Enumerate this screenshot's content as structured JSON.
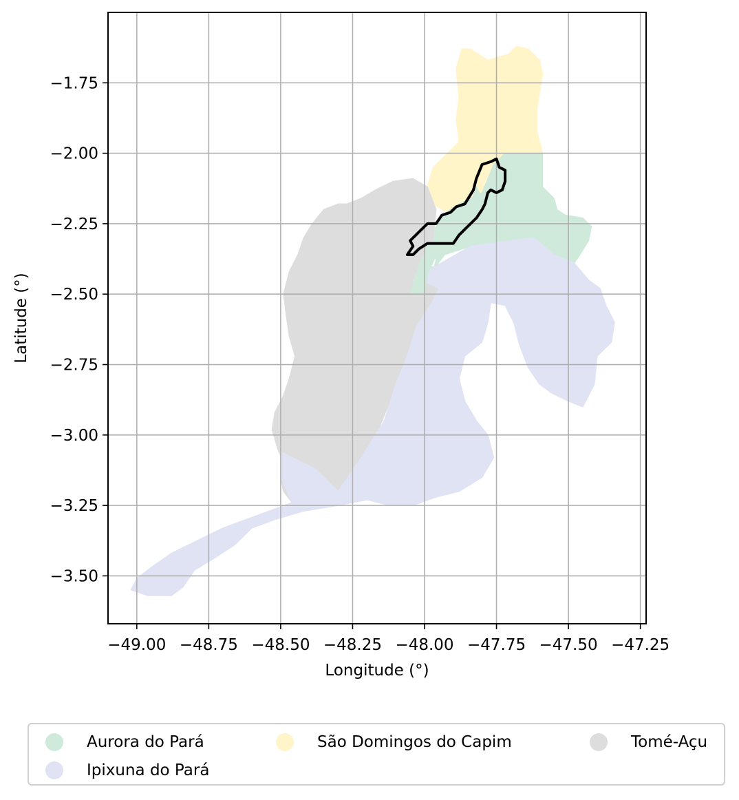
{
  "chart_data": {
    "type": "map",
    "xlabel": "Longitude (°)",
    "ylabel": "Latitude (°)",
    "xlim": [
      -49.1,
      -47.23
    ],
    "ylim": [
      -3.67,
      -1.5
    ],
    "x_ticks": [
      -49.0,
      -48.75,
      -48.5,
      -48.25,
      -48.0,
      -47.75,
      -47.5,
      -47.25
    ],
    "x_tick_labels": [
      "−49.00",
      "−48.75",
      "−48.50",
      "−48.25",
      "−48.00",
      "−47.75",
      "−47.50",
      "−47.25"
    ],
    "y_ticks": [
      -1.75,
      -2.0,
      -2.25,
      -2.5,
      -2.75,
      -3.0,
      -3.25,
      -3.5
    ],
    "y_tick_labels": [
      "−1.75",
      "−2.00",
      "−2.25",
      "−2.50",
      "−2.75",
      "−3.00",
      "−3.25",
      "−3.50"
    ],
    "grid": true,
    "legend_position": "bottom",
    "regions": [
      {
        "name": "São Domingos do Capim",
        "color": "#fff5c8",
        "outline": [
          [
            -47.87,
            -1.63
          ],
          [
            -47.84,
            -1.63
          ],
          [
            -47.81,
            -1.65
          ],
          [
            -47.78,
            -1.67
          ],
          [
            -47.75,
            -1.66
          ],
          [
            -47.71,
            -1.65
          ],
          [
            -47.68,
            -1.62
          ],
          [
            -47.64,
            -1.63
          ],
          [
            -47.6,
            -1.67
          ],
          [
            -47.59,
            -1.72
          ],
          [
            -47.6,
            -1.78
          ],
          [
            -47.61,
            -1.85
          ],
          [
            -47.61,
            -1.92
          ],
          [
            -47.59,
            -2.0
          ],
          [
            -47.72,
            -2.0
          ],
          [
            -47.76,
            -2.04
          ],
          [
            -47.79,
            -2.1
          ],
          [
            -47.8,
            -2.14
          ],
          [
            -47.86,
            -2.17
          ],
          [
            -47.92,
            -2.21
          ],
          [
            -47.97,
            -2.18
          ],
          [
            -47.99,
            -2.12
          ],
          [
            -47.97,
            -2.05
          ],
          [
            -47.92,
            -2.0
          ],
          [
            -47.88,
            -1.96
          ],
          [
            -47.89,
            -1.88
          ],
          [
            -47.88,
            -1.8
          ],
          [
            -47.89,
            -1.7
          ]
        ]
      },
      {
        "name": "Aurora do Pará",
        "color": "#cfeadb",
        "outline": [
          [
            -47.72,
            -2.0
          ],
          [
            -47.59,
            -2.0
          ],
          [
            -47.59,
            -2.06
          ],
          [
            -47.59,
            -2.12
          ],
          [
            -47.55,
            -2.16
          ],
          [
            -47.54,
            -2.2
          ],
          [
            -47.51,
            -2.22
          ],
          [
            -47.45,
            -2.23
          ],
          [
            -47.42,
            -2.26
          ],
          [
            -47.43,
            -2.31
          ],
          [
            -47.46,
            -2.36
          ],
          [
            -47.48,
            -2.39
          ],
          [
            -47.55,
            -2.36
          ],
          [
            -47.6,
            -2.32
          ],
          [
            -47.65,
            -2.3
          ],
          [
            -47.7,
            -2.31
          ],
          [
            -47.78,
            -2.32
          ],
          [
            -47.84,
            -2.33
          ],
          [
            -47.93,
            -2.36
          ],
          [
            -47.96,
            -2.4
          ],
          [
            -48.0,
            -2.41
          ],
          [
            -48.04,
            -2.45
          ],
          [
            -48.05,
            -2.49
          ],
          [
            -48.02,
            -2.5
          ],
          [
            -47.98,
            -2.46
          ],
          [
            -47.96,
            -2.38
          ],
          [
            -47.97,
            -2.28
          ],
          [
            -47.94,
            -2.22
          ],
          [
            -47.88,
            -2.18
          ],
          [
            -47.8,
            -2.14
          ],
          [
            -47.76,
            -2.04
          ]
        ]
      },
      {
        "name": "Tomé-Açu",
        "color": "#dddddd",
        "outline": [
          [
            -47.99,
            -2.12
          ],
          [
            -48.04,
            -2.09
          ],
          [
            -48.11,
            -2.1
          ],
          [
            -48.17,
            -2.13
          ],
          [
            -48.22,
            -2.16
          ],
          [
            -48.27,
            -2.18
          ],
          [
            -48.3,
            -2.18
          ],
          [
            -48.35,
            -2.2
          ],
          [
            -48.39,
            -2.25
          ],
          [
            -48.42,
            -2.3
          ],
          [
            -48.44,
            -2.36
          ],
          [
            -48.47,
            -2.42
          ],
          [
            -48.49,
            -2.5
          ],
          [
            -48.48,
            -2.58
          ],
          [
            -48.47,
            -2.65
          ],
          [
            -48.45,
            -2.72
          ],
          [
            -48.47,
            -2.8
          ],
          [
            -48.49,
            -2.86
          ],
          [
            -48.52,
            -2.92
          ],
          [
            -48.53,
            -2.98
          ],
          [
            -48.51,
            -3.05
          ],
          [
            -48.49,
            -3.1
          ],
          [
            -48.5,
            -3.15
          ],
          [
            -48.49,
            -3.2
          ],
          [
            -48.46,
            -3.24
          ],
          [
            -48.4,
            -3.25
          ],
          [
            -48.34,
            -3.25
          ],
          [
            -48.28,
            -3.2
          ],
          [
            -48.25,
            -3.14
          ],
          [
            -48.22,
            -3.08
          ],
          [
            -48.16,
            -2.98
          ],
          [
            -48.12,
            -2.88
          ],
          [
            -48.08,
            -2.78
          ],
          [
            -48.06,
            -2.72
          ],
          [
            -48.02,
            -2.65
          ],
          [
            -47.96,
            -2.58
          ],
          [
            -47.92,
            -2.52
          ],
          [
            -47.96,
            -2.46
          ],
          [
            -47.98,
            -2.4
          ],
          [
            -47.97,
            -2.3
          ],
          [
            -47.96,
            -2.2
          ]
        ]
      },
      {
        "name": "Ipixuna do Pará",
        "color": "#dfe3f3",
        "outline": [
          [
            -48.04,
            -2.45
          ],
          [
            -47.96,
            -2.4
          ],
          [
            -47.84,
            -2.33
          ],
          [
            -47.7,
            -2.31
          ],
          [
            -47.62,
            -2.3
          ],
          [
            -47.55,
            -2.36
          ],
          [
            -47.48,
            -2.39
          ],
          [
            -47.43,
            -2.45
          ],
          [
            -47.39,
            -2.48
          ],
          [
            -47.37,
            -2.54
          ],
          [
            -47.34,
            -2.6
          ],
          [
            -47.35,
            -2.67
          ],
          [
            -47.4,
            -2.72
          ],
          [
            -47.41,
            -2.82
          ],
          [
            -47.45,
            -2.9
          ],
          [
            -47.5,
            -2.88
          ],
          [
            -47.56,
            -2.85
          ],
          [
            -47.6,
            -2.82
          ],
          [
            -47.64,
            -2.76
          ],
          [
            -47.67,
            -2.68
          ],
          [
            -47.69,
            -2.6
          ],
          [
            -47.72,
            -2.54
          ],
          [
            -47.77,
            -2.53
          ],
          [
            -47.78,
            -2.6
          ],
          [
            -47.8,
            -2.67
          ],
          [
            -47.86,
            -2.72
          ],
          [
            -47.88,
            -2.8
          ],
          [
            -47.86,
            -2.88
          ],
          [
            -47.82,
            -2.95
          ],
          [
            -47.78,
            -3.0
          ],
          [
            -47.76,
            -3.08
          ],
          [
            -47.8,
            -3.15
          ],
          [
            -47.88,
            -3.2
          ],
          [
            -47.96,
            -3.22
          ],
          [
            -48.04,
            -3.25
          ],
          [
            -48.12,
            -3.25
          ],
          [
            -48.2,
            -3.23
          ],
          [
            -48.3,
            -3.25
          ],
          [
            -48.42,
            -3.27
          ],
          [
            -48.52,
            -3.3
          ],
          [
            -48.6,
            -3.33
          ],
          [
            -48.66,
            -3.39
          ],
          [
            -48.72,
            -3.43
          ],
          [
            -48.8,
            -3.48
          ],
          [
            -48.84,
            -3.54
          ],
          [
            -48.88,
            -3.57
          ],
          [
            -48.96,
            -3.57
          ],
          [
            -49.02,
            -3.55
          ],
          [
            -49.0,
            -3.51
          ],
          [
            -48.95,
            -3.47
          ],
          [
            -48.88,
            -3.42
          ],
          [
            -48.82,
            -3.39
          ],
          [
            -48.76,
            -3.36
          ],
          [
            -48.7,
            -3.33
          ],
          [
            -48.62,
            -3.3
          ],
          [
            -48.54,
            -3.27
          ],
          [
            -48.46,
            -3.24
          ],
          [
            -48.5,
            -3.15
          ],
          [
            -48.5,
            -3.06
          ],
          [
            -48.38,
            -3.12
          ],
          [
            -48.3,
            -3.2
          ],
          [
            -48.22,
            -3.08
          ],
          [
            -48.14,
            -2.95
          ],
          [
            -48.1,
            -2.82
          ],
          [
            -48.06,
            -2.72
          ],
          [
            -48.03,
            -2.62
          ],
          [
            -47.98,
            -2.54
          ],
          [
            -47.95,
            -2.48
          ],
          [
            -47.99,
            -2.46
          ]
        ]
      },
      {
        "name": "",
        "color": "#cfeadb",
        "outline": [
          [
            -47.99,
            -2.43
          ],
          [
            -47.95,
            -2.34
          ],
          [
            -47.91,
            -2.28
          ],
          [
            -47.86,
            -2.26
          ],
          [
            -47.82,
            -2.21
          ],
          [
            -47.8,
            -2.16
          ],
          [
            -47.82,
            -2.12
          ],
          [
            -47.84,
            -2.18
          ],
          [
            -47.88,
            -2.24
          ],
          [
            -47.93,
            -2.27
          ],
          [
            -47.99,
            -2.33
          ],
          [
            -48.02,
            -2.4
          ],
          [
            -48.05,
            -2.5
          ],
          [
            -48.0,
            -2.5
          ]
        ]
      }
    ],
    "highlight_outline": [
      [
        -47.75,
        -2.02
      ],
      [
        -47.74,
        -2.05
      ],
      [
        -47.72,
        -2.06
      ],
      [
        -47.72,
        -2.1
      ],
      [
        -47.73,
        -2.13
      ],
      [
        -47.75,
        -2.14
      ],
      [
        -47.77,
        -2.13
      ],
      [
        -47.78,
        -2.14
      ],
      [
        -47.79,
        -2.18
      ],
      [
        -47.8,
        -2.2
      ],
      [
        -47.82,
        -2.23
      ],
      [
        -47.85,
        -2.26
      ],
      [
        -47.88,
        -2.29
      ],
      [
        -47.9,
        -2.32
      ],
      [
        -47.96,
        -2.32
      ],
      [
        -47.99,
        -2.32
      ],
      [
        -48.02,
        -2.34
      ],
      [
        -48.04,
        -2.36
      ],
      [
        -48.06,
        -2.36
      ],
      [
        -48.04,
        -2.33
      ],
      [
        -48.05,
        -2.31
      ],
      [
        -48.03,
        -2.29
      ],
      [
        -48.01,
        -2.27
      ],
      [
        -47.99,
        -2.25
      ],
      [
        -47.96,
        -2.25
      ],
      [
        -47.94,
        -2.22
      ],
      [
        -47.91,
        -2.21
      ],
      [
        -47.89,
        -2.19
      ],
      [
        -47.86,
        -2.18
      ],
      [
        -47.83,
        -2.13
      ],
      [
        -47.82,
        -2.09
      ],
      [
        -47.8,
        -2.04
      ],
      [
        -47.77,
        -2.03
      ]
    ]
  },
  "legend": {
    "items": [
      {
        "label": "Aurora do Pará",
        "color": "#cfeadb"
      },
      {
        "label": "São Domingos do Capim",
        "color": "#fff5c8"
      },
      {
        "label": "Tomé-Açu",
        "color": "#dddddd"
      },
      {
        "label": "Ipixuna do Pará",
        "color": "#dfe3f3"
      }
    ]
  }
}
